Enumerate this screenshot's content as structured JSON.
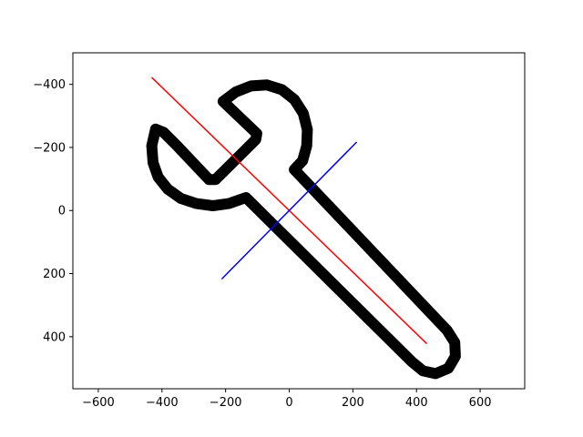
{
  "chart_data": {
    "type": "line",
    "title": "",
    "xlabel": "",
    "ylabel": "",
    "xlim": [
      -680,
      740
    ],
    "ylim": [
      -500,
      565
    ],
    "y_inverted": true,
    "grid": false,
    "xticks": [
      -600,
      -400,
      -200,
      0,
      200,
      400,
      600
    ],
    "xtick_labels": [
      "−600",
      "−400",
      "−200",
      "0",
      "200",
      "400",
      "600"
    ],
    "yticks": [
      -400,
      -200,
      0,
      200,
      400
    ],
    "ytick_labels": [
      "−400",
      "−200",
      "0",
      "200",
      "400"
    ],
    "series": [
      {
        "kind": "wrench-outline",
        "color": "#000000",
        "closed": true,
        "points": [
          [
            16,
            -130
          ],
          [
            42,
            -158
          ],
          [
            55,
            -205
          ],
          [
            57,
            -256
          ],
          [
            44,
            -308
          ],
          [
            16,
            -352
          ],
          [
            -23,
            -383
          ],
          [
            -70,
            -398
          ],
          [
            -120,
            -395
          ],
          [
            -168,
            -376
          ],
          [
            -208,
            -346
          ],
          [
            -102,
            -244
          ],
          [
            -105,
            -225
          ],
          [
            -232,
            -98
          ],
          [
            -252,
            -98
          ],
          [
            -355,
            -208
          ],
          [
            -395,
            -248
          ],
          [
            -420,
            -258
          ],
          [
            -432,
            -205
          ],
          [
            -428,
            -152
          ],
          [
            -412,
            -106
          ],
          [
            -382,
            -68
          ],
          [
            -340,
            -38
          ],
          [
            -292,
            -22
          ],
          [
            -240,
            -15
          ],
          [
            -190,
            -22
          ],
          [
            -136,
            -41
          ],
          [
            386,
            480
          ],
          [
            420,
            508
          ],
          [
            460,
            517
          ],
          [
            500,
            500
          ],
          [
            522,
            462
          ],
          [
            520,
            418
          ],
          [
            496,
            380
          ]
        ]
      },
      {
        "kind": "line",
        "color": "#ff0000",
        "points": [
          [
            -431,
            -421
          ],
          [
            431,
            421
          ]
        ]
      },
      {
        "kind": "line",
        "color": "#0000ff",
        "points": [
          [
            -211,
            216
          ],
          [
            211,
            -216
          ]
        ]
      }
    ]
  }
}
